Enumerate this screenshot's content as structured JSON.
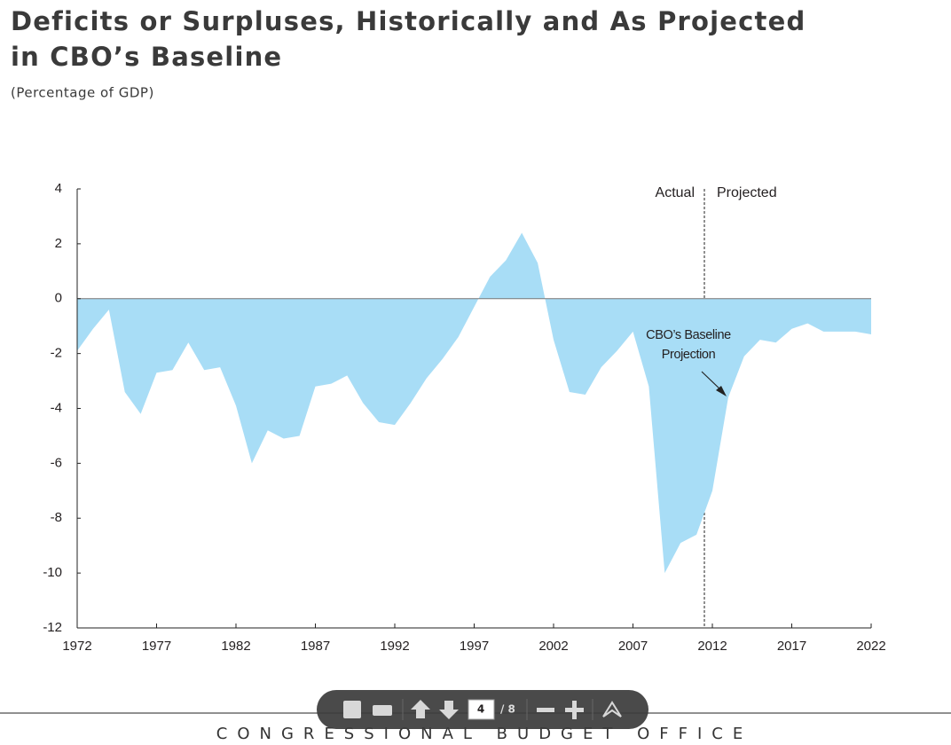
{
  "chart_data": {
    "type": "area",
    "title": [
      "Deficits or Surpluses, Historically and As Projected",
      "in CBO’s Baseline"
    ],
    "subtitle": "(Percentage of GDP)",
    "x": [
      1972,
      1973,
      1974,
      1975,
      1976,
      1977,
      1978,
      1979,
      1980,
      1981,
      1982,
      1983,
      1984,
      1985,
      1986,
      1987,
      1988,
      1989,
      1990,
      1991,
      1992,
      1993,
      1994,
      1995,
      1996,
      1997,
      1998,
      1999,
      2000,
      2001,
      2002,
      2003,
      2004,
      2005,
      2006,
      2007,
      2008,
      2009,
      2010,
      2011,
      2012,
      2013,
      2014,
      2015,
      2016,
      2017,
      2018,
      2019,
      2020,
      2021,
      2022
    ],
    "values": [
      -1.9,
      -1.1,
      -0.4,
      -3.4,
      -4.2,
      -2.7,
      -2.6,
      -1.6,
      -2.6,
      -2.5,
      -3.9,
      -6.0,
      -4.8,
      -5.1,
      -5.0,
      -3.2,
      -3.1,
      -2.8,
      -3.8,
      -4.5,
      -4.6,
      -3.8,
      -2.9,
      -2.2,
      -1.4,
      -0.3,
      0.8,
      1.4,
      2.4,
      1.3,
      -1.5,
      -3.4,
      -3.5,
      -2.5,
      -1.9,
      -1.2,
      -3.2,
      -10.0,
      -8.9,
      -8.6,
      -7.0,
      -3.6,
      -2.1,
      -1.5,
      -1.6,
      -1.1,
      -0.9,
      -1.2,
      -1.2,
      -1.2,
      -1.3
    ],
    "color": "#a8ddf6",
    "xlim": [
      1972,
      2022
    ],
    "xticks": [
      1972,
      1977,
      1982,
      1987,
      1992,
      1997,
      2002,
      2007,
      2012,
      2017,
      2022
    ],
    "ylim": [
      -12,
      4
    ],
    "yticks": [
      -12,
      -10,
      -8,
      -6,
      -4,
      -2,
      0,
      2,
      4
    ],
    "annotations": {
      "actual": "Actual",
      "projected": "Projected",
      "baseline": [
        "CBO’s Baseline",
        "Projection"
      ]
    }
  },
  "viewer": {
    "page": "4",
    "total": "/ 8"
  },
  "footer": "CONGRESSIONAL BUDGET OFFICE"
}
